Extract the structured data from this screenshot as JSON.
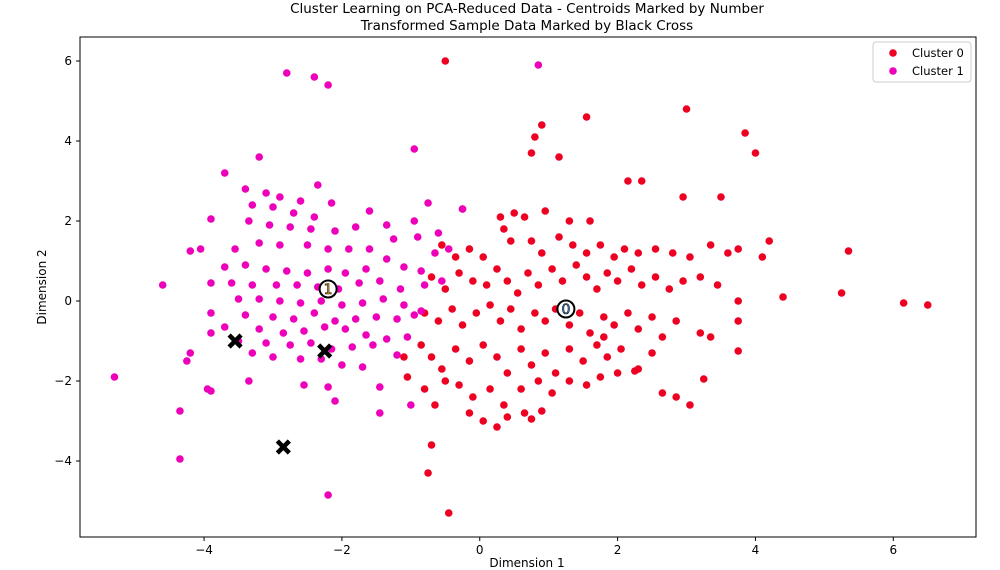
{
  "chart_data": {
    "type": "scatter",
    "title": [
      "Cluster Learning on PCA-Reduced Data - Centroids Marked by Number",
      "Transformed Sample Data Marked by Black Cross"
    ],
    "xlabel": "Dimension 1",
    "ylabel": "Dimension 2",
    "xlim": [
      -5.8,
      7.2
    ],
    "ylim": [
      -5.9,
      6.6
    ],
    "xticks": [
      -4,
      -2,
      0,
      2,
      4,
      6
    ],
    "yticks": [
      -4,
      -2,
      0,
      2,
      4,
      6
    ],
    "tick_labels_x": [
      "−4",
      "−2",
      "0",
      "2",
      "4",
      "6"
    ],
    "tick_labels_y": [
      "−4",
      "−2",
      "0",
      "2",
      "4",
      "6"
    ],
    "grid": false,
    "legend_position": "top-right",
    "series": [
      {
        "name": "Cluster 0",
        "color": "#ee0022",
        "points": [
          [
            -0.5,
            6.0
          ],
          [
            0.9,
            4.4
          ],
          [
            0.8,
            4.1
          ],
          [
            1.55,
            4.6
          ],
          [
            3.0,
            4.8
          ],
          [
            3.85,
            4.2
          ],
          [
            4.0,
            3.7
          ],
          [
            0.75,
            3.7
          ],
          [
            1.15,
            3.6
          ],
          [
            2.15,
            3.0
          ],
          [
            2.35,
            3.0
          ],
          [
            2.95,
            2.6
          ],
          [
            3.5,
            2.6
          ],
          [
            -0.25,
            2.3
          ],
          [
            0.3,
            2.1
          ],
          [
            0.5,
            2.2
          ],
          [
            0.65,
            2.1
          ],
          [
            0.95,
            2.25
          ],
          [
            1.3,
            2.0
          ],
          [
            1.6,
            2.0
          ],
          [
            -0.55,
            1.4
          ],
          [
            -0.35,
            1.1
          ],
          [
            -0.15,
            1.3
          ],
          [
            0.05,
            1.1
          ],
          [
            0.35,
            1.8
          ],
          [
            0.45,
            1.5
          ],
          [
            0.75,
            1.5
          ],
          [
            0.9,
            1.2
          ],
          [
            1.15,
            1.6
          ],
          [
            1.35,
            1.4
          ],
          [
            1.55,
            1.2
          ],
          [
            1.75,
            1.4
          ],
          [
            1.95,
            1.1
          ],
          [
            2.1,
            1.3
          ],
          [
            2.3,
            1.2
          ],
          [
            2.55,
            1.3
          ],
          [
            2.8,
            1.2
          ],
          [
            3.05,
            1.1
          ],
          [
            3.35,
            1.4
          ],
          [
            3.6,
            1.2
          ],
          [
            3.75,
            1.3
          ],
          [
            4.1,
            1.1
          ],
          [
            4.2,
            1.5
          ],
          [
            5.35,
            1.25
          ],
          [
            -0.7,
            0.6
          ],
          [
            -0.5,
            0.3
          ],
          [
            -0.3,
            0.7
          ],
          [
            -0.1,
            0.5
          ],
          [
            0.1,
            0.4
          ],
          [
            0.25,
            0.8
          ],
          [
            0.4,
            0.5
          ],
          [
            0.55,
            0.2
          ],
          [
            0.7,
            0.7
          ],
          [
            0.85,
            0.4
          ],
          [
            1.05,
            0.8
          ],
          [
            1.2,
            0.5
          ],
          [
            1.4,
            0.9
          ],
          [
            1.55,
            0.6
          ],
          [
            1.7,
            0.3
          ],
          [
            1.85,
            0.7
          ],
          [
            2.0,
            0.5
          ],
          [
            2.2,
            0.8
          ],
          [
            2.35,
            0.4
          ],
          [
            2.55,
            0.6
          ],
          [
            2.75,
            0.3
          ],
          [
            2.95,
            0.5
          ],
          [
            3.2,
            0.6
          ],
          [
            3.45,
            0.4
          ],
          [
            3.75,
            0.0
          ],
          [
            4.4,
            0.1
          ],
          [
            5.25,
            0.2
          ],
          [
            6.15,
            -0.05
          ],
          [
            6.5,
            -0.1
          ],
          [
            -0.8,
            -0.3
          ],
          [
            -0.6,
            -0.5
          ],
          [
            -0.4,
            -0.2
          ],
          [
            -0.25,
            -0.6
          ],
          [
            -0.05,
            -0.3
          ],
          [
            0.15,
            -0.1
          ],
          [
            0.3,
            -0.5
          ],
          [
            0.45,
            -0.2
          ],
          [
            0.6,
            -0.7
          ],
          [
            0.8,
            -0.3
          ],
          [
            0.95,
            -0.5
          ],
          [
            1.1,
            -0.2
          ],
          [
            1.3,
            -0.6
          ],
          [
            1.45,
            -0.3
          ],
          [
            1.6,
            -0.8
          ],
          [
            1.8,
            -0.4
          ],
          [
            1.95,
            -0.6
          ],
          [
            2.15,
            -0.3
          ],
          [
            2.3,
            -0.7
          ],
          [
            2.5,
            -0.4
          ],
          [
            2.65,
            -0.9
          ],
          [
            2.85,
            -0.5
          ],
          [
            3.2,
            -0.8
          ],
          [
            3.35,
            -0.9
          ],
          [
            3.75,
            -0.5
          ],
          [
            -0.85,
            -1.1
          ],
          [
            -0.7,
            -1.4
          ],
          [
            -0.55,
            -1.7
          ],
          [
            -0.35,
            -1.2
          ],
          [
            -0.15,
            -1.5
          ],
          [
            0.05,
            -1.1
          ],
          [
            0.25,
            -1.4
          ],
          [
            0.4,
            -1.8
          ],
          [
            0.6,
            -1.2
          ],
          [
            0.75,
            -1.6
          ],
          [
            0.95,
            -1.3
          ],
          [
            1.1,
            -1.8
          ],
          [
            1.3,
            -1.2
          ],
          [
            1.5,
            -1.5
          ],
          [
            1.7,
            -1.1
          ],
          [
            1.85,
            -1.4
          ],
          [
            2.05,
            -1.2
          ],
          [
            2.3,
            -1.7
          ],
          [
            2.5,
            -1.3
          ],
          [
            3.75,
            -1.25
          ],
          [
            -1.1,
            -1.4
          ],
          [
            -1.05,
            -1.9
          ],
          [
            -0.8,
            -2.2
          ],
          [
            -0.5,
            -2.0
          ],
          [
            -0.3,
            -2.1
          ],
          [
            -0.1,
            -2.4
          ],
          [
            0.15,
            -2.2
          ],
          [
            0.35,
            -2.6
          ],
          [
            0.6,
            -2.2
          ],
          [
            0.85,
            -2.0
          ],
          [
            1.05,
            -2.3
          ],
          [
            1.3,
            -2.0
          ],
          [
            1.55,
            -2.1
          ],
          [
            1.75,
            -1.9
          ],
          [
            2.0,
            -1.8
          ],
          [
            2.25,
            -1.75
          ],
          [
            2.65,
            -2.3
          ],
          [
            2.85,
            -2.4
          ],
          [
            3.05,
            -2.6
          ],
          [
            3.25,
            -1.95
          ],
          [
            -0.65,
            -2.6
          ],
          [
            -0.15,
            -2.8
          ],
          [
            0.05,
            -3.0
          ],
          [
            0.25,
            -3.15
          ],
          [
            0.4,
            -2.9
          ],
          [
            0.65,
            -2.8
          ],
          [
            0.75,
            -2.95
          ],
          [
            0.9,
            -2.75
          ],
          [
            -0.7,
            -3.6
          ],
          [
            -0.75,
            -4.3
          ],
          [
            -0.45,
            -5.3
          ],
          [
            1.8,
            -0.9
          ]
        ]
      },
      {
        "name": "Cluster 1",
        "color": "#ee00bb",
        "points": [
          [
            -2.8,
            5.7
          ],
          [
            -2.4,
            5.6
          ],
          [
            -2.2,
            5.4
          ],
          [
            0.85,
            5.9
          ],
          [
            -3.2,
            3.6
          ],
          [
            -0.95,
            3.8
          ],
          [
            -3.7,
            3.2
          ],
          [
            -2.35,
            2.9
          ],
          [
            -3.4,
            2.8
          ],
          [
            -3.1,
            2.7
          ],
          [
            -2.9,
            2.6
          ],
          [
            -2.6,
            2.5
          ],
          [
            -2.15,
            2.45
          ],
          [
            -3.3,
            2.4
          ],
          [
            -3.0,
            2.35
          ],
          [
            -2.7,
            2.2
          ],
          [
            -2.4,
            2.1
          ],
          [
            -1.6,
            2.25
          ],
          [
            -0.75,
            2.45
          ],
          [
            -0.25,
            2.3
          ],
          [
            -3.9,
            2.05
          ],
          [
            -3.35,
            2.0
          ],
          [
            -3.05,
            1.9
          ],
          [
            -2.75,
            1.85
          ],
          [
            -2.45,
            1.8
          ],
          [
            -2.1,
            1.75
          ],
          [
            -1.8,
            1.85
          ],
          [
            -1.35,
            1.9
          ],
          [
            -0.95,
            2.0
          ],
          [
            -0.6,
            1.7
          ],
          [
            -4.2,
            1.25
          ],
          [
            -4.05,
            1.3
          ],
          [
            -3.55,
            1.3
          ],
          [
            -3.2,
            1.45
          ],
          [
            -2.9,
            1.4
          ],
          [
            -2.5,
            1.4
          ],
          [
            -2.2,
            1.3
          ],
          [
            -1.9,
            1.3
          ],
          [
            -1.6,
            1.3
          ],
          [
            -1.25,
            1.55
          ],
          [
            -0.9,
            1.6
          ],
          [
            -0.65,
            1.2
          ],
          [
            -0.45,
            1.3
          ],
          [
            -3.7,
            0.85
          ],
          [
            -3.4,
            0.9
          ],
          [
            -3.1,
            0.8
          ],
          [
            -2.8,
            0.75
          ],
          [
            -2.5,
            0.7
          ],
          [
            -2.2,
            0.8
          ],
          [
            -1.95,
            0.7
          ],
          [
            -1.65,
            0.8
          ],
          [
            -1.35,
            1.05
          ],
          [
            -1.1,
            0.85
          ],
          [
            -0.85,
            0.75
          ],
          [
            -4.6,
            0.4
          ],
          [
            -3.9,
            0.45
          ],
          [
            -3.6,
            0.45
          ],
          [
            -3.3,
            0.4
          ],
          [
            -2.95,
            0.4
          ],
          [
            -2.65,
            0.4
          ],
          [
            -2.35,
            0.35
          ],
          [
            -2.05,
            0.3
          ],
          [
            -1.75,
            0.45
          ],
          [
            -1.45,
            0.5
          ],
          [
            -1.15,
            0.3
          ],
          [
            -0.8,
            0.4
          ],
          [
            -0.55,
            0.5
          ],
          [
            -3.5,
            0.05
          ],
          [
            -3.2,
            0.05
          ],
          [
            -2.9,
            0.0
          ],
          [
            -2.6,
            -0.05
          ],
          [
            -2.3,
            0.0
          ],
          [
            -2.0,
            -0.1
          ],
          [
            -1.7,
            -0.05
          ],
          [
            -1.4,
            0.05
          ],
          [
            -1.1,
            -0.1
          ],
          [
            -0.85,
            -0.25
          ],
          [
            -3.9,
            -0.3
          ],
          [
            -3.4,
            -0.35
          ],
          [
            -3.0,
            -0.4
          ],
          [
            -2.7,
            -0.45
          ],
          [
            -2.4,
            -0.3
          ],
          [
            -2.1,
            -0.5
          ],
          [
            -1.8,
            -0.45
          ],
          [
            -1.5,
            -0.4
          ],
          [
            -1.2,
            -0.45
          ],
          [
            -0.95,
            -0.35
          ],
          [
            -3.7,
            -0.65
          ],
          [
            -3.2,
            -0.7
          ],
          [
            -2.85,
            -0.8
          ],
          [
            -2.55,
            -0.75
          ],
          [
            -2.25,
            -0.65
          ],
          [
            -1.95,
            -0.7
          ],
          [
            -1.65,
            -0.85
          ],
          [
            -1.35,
            -0.95
          ],
          [
            -1.05,
            -0.9
          ],
          [
            -3.9,
            -0.8
          ],
          [
            -3.5,
            -1.0
          ],
          [
            -3.1,
            -1.05
          ],
          [
            -2.75,
            -1.1
          ],
          [
            -2.45,
            -1.05
          ],
          [
            -2.15,
            -1.2
          ],
          [
            -1.85,
            -1.15
          ],
          [
            -1.55,
            -1.1
          ],
          [
            -1.2,
            -1.35
          ],
          [
            -4.2,
            -1.3
          ],
          [
            -3.3,
            -1.3
          ],
          [
            -3.0,
            -1.4
          ],
          [
            -2.6,
            -1.45
          ],
          [
            -2.3,
            -1.45
          ],
          [
            -2.0,
            -1.6
          ],
          [
            -1.7,
            -1.65
          ],
          [
            -4.25,
            -1.5
          ],
          [
            -5.3,
            -1.9
          ],
          [
            -3.95,
            -2.2
          ],
          [
            -3.9,
            -2.25
          ],
          [
            -2.55,
            -2.1
          ],
          [
            -2.2,
            -2.15
          ],
          [
            -1.45,
            -2.15
          ],
          [
            -2.1,
            -2.5
          ],
          [
            -4.35,
            -2.75
          ],
          [
            -1.45,
            -2.8
          ],
          [
            -4.35,
            -3.95
          ],
          [
            -2.2,
            -4.85
          ],
          [
            -1.0,
            -2.6
          ],
          [
            -3.35,
            -2.0
          ]
        ]
      }
    ],
    "centroids": [
      {
        "label": "0",
        "x": 1.25,
        "y": -0.2,
        "fill": "#4a90d9"
      },
      {
        "label": "1",
        "x": -2.2,
        "y": 0.3,
        "fill": "#ffa500"
      }
    ],
    "samples": [
      {
        "x": -3.55,
        "y": -1.0
      },
      {
        "x": -2.25,
        "y": -1.25
      },
      {
        "x": -2.85,
        "y": -3.65
      }
    ]
  }
}
